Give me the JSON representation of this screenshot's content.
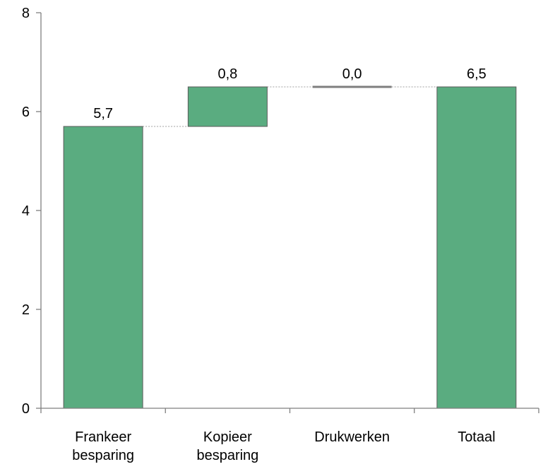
{
  "chart_data": {
    "type": "bar",
    "subtype": "waterfall",
    "title": "",
    "xlabel": "",
    "ylabel": "",
    "ylim": [
      0,
      8
    ],
    "yticks": [
      "0",
      "2",
      "4",
      "6",
      "8"
    ],
    "categories": [
      [
        "Frankeer",
        "besparing"
      ],
      [
        "Kopieer",
        "besparing"
      ],
      [
        "Drukwerken"
      ],
      [
        "Totaal"
      ]
    ],
    "values": [
      5.7,
      0.8,
      0.0,
      6.5
    ],
    "data_labels": [
      "5,7",
      "0,8",
      "0,0",
      "6,5"
    ],
    "kinds": [
      "increase",
      "increase",
      "increase",
      "total"
    ],
    "grid": false,
    "legend": "none",
    "colors": {
      "bar": "#5aac80",
      "bar_stroke": "#5a5a5a",
      "connector": "#a0a0a0",
      "axis": "#7f7f7f"
    }
  }
}
